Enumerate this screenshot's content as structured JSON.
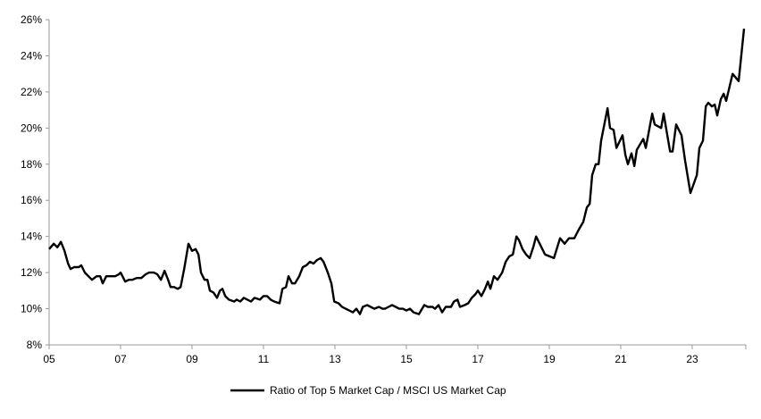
{
  "chart_data": {
    "type": "line",
    "title": "",
    "xlabel": "",
    "ylabel": "",
    "xlim": [
      2005,
      2024.5
    ],
    "ylim": [
      8,
      26
    ],
    "grid": false,
    "legend_position": "bottom",
    "x_ticks": [
      2005,
      2007,
      2009,
      2011,
      2013,
      2015,
      2017,
      2019,
      2021,
      2023
    ],
    "x_tick_labels": [
      "05",
      "07",
      "09",
      "11",
      "13",
      "15",
      "17",
      "19",
      "21",
      "23"
    ],
    "y_ticks": [
      8,
      10,
      12,
      14,
      16,
      18,
      20,
      22,
      24,
      26
    ],
    "y_tick_labels": [
      "8%",
      "10%",
      "12%",
      "14%",
      "16%",
      "18%",
      "20%",
      "22%",
      "24%",
      "26%"
    ],
    "series": [
      {
        "name": "Ratio of Top 5 Market Cap / MSCI US Market Cap",
        "color": "#000000",
        "points": [
          [
            2005.0,
            13.3
          ],
          [
            2005.13,
            13.6
          ],
          [
            2005.23,
            13.4
          ],
          [
            2005.33,
            13.7
          ],
          [
            2005.43,
            13.2
          ],
          [
            2005.53,
            12.5
          ],
          [
            2005.6,
            12.2
          ],
          [
            2005.7,
            12.3
          ],
          [
            2005.83,
            12.3
          ],
          [
            2005.9,
            12.4
          ],
          [
            2006.0,
            12.0
          ],
          [
            2006.1,
            11.8
          ],
          [
            2006.2,
            11.6
          ],
          [
            2006.33,
            11.8
          ],
          [
            2006.43,
            11.8
          ],
          [
            2006.5,
            11.4
          ],
          [
            2006.6,
            11.8
          ],
          [
            2006.75,
            11.8
          ],
          [
            2006.85,
            11.8
          ],
          [
            2006.95,
            11.9
          ],
          [
            2007.0,
            12.0
          ],
          [
            2007.13,
            11.5
          ],
          [
            2007.23,
            11.6
          ],
          [
            2007.33,
            11.6
          ],
          [
            2007.45,
            11.7
          ],
          [
            2007.58,
            11.7
          ],
          [
            2007.7,
            11.9
          ],
          [
            2007.8,
            12.0
          ],
          [
            2007.93,
            12.0
          ],
          [
            2008.03,
            11.9
          ],
          [
            2008.13,
            11.6
          ],
          [
            2008.23,
            12.1
          ],
          [
            2008.33,
            11.6
          ],
          [
            2008.4,
            11.2
          ],
          [
            2008.5,
            11.2
          ],
          [
            2008.6,
            11.1
          ],
          [
            2008.68,
            11.2
          ],
          [
            2008.78,
            12.2
          ],
          [
            2008.9,
            13.6
          ],
          [
            2009.0,
            13.2
          ],
          [
            2009.1,
            13.3
          ],
          [
            2009.18,
            13.0
          ],
          [
            2009.25,
            12.0
          ],
          [
            2009.35,
            11.6
          ],
          [
            2009.43,
            11.6
          ],
          [
            2009.5,
            11.0
          ],
          [
            2009.6,
            10.9
          ],
          [
            2009.7,
            10.6
          ],
          [
            2009.78,
            11.0
          ],
          [
            2009.85,
            11.1
          ],
          [
            2009.93,
            10.7
          ],
          [
            2010.03,
            10.5
          ],
          [
            2010.18,
            10.4
          ],
          [
            2010.25,
            10.5
          ],
          [
            2010.35,
            10.4
          ],
          [
            2010.45,
            10.6
          ],
          [
            2010.55,
            10.5
          ],
          [
            2010.65,
            10.4
          ],
          [
            2010.75,
            10.6
          ],
          [
            2010.9,
            10.5
          ],
          [
            2011.0,
            10.7
          ],
          [
            2011.1,
            10.7
          ],
          [
            2011.2,
            10.5
          ],
          [
            2011.3,
            10.4
          ],
          [
            2011.45,
            10.3
          ],
          [
            2011.53,
            11.1
          ],
          [
            2011.63,
            11.2
          ],
          [
            2011.7,
            11.8
          ],
          [
            2011.8,
            11.4
          ],
          [
            2011.88,
            11.4
          ],
          [
            2012.0,
            11.8
          ],
          [
            2012.1,
            12.3
          ],
          [
            2012.2,
            12.4
          ],
          [
            2012.3,
            12.6
          ],
          [
            2012.4,
            12.5
          ],
          [
            2012.5,
            12.7
          ],
          [
            2012.6,
            12.8
          ],
          [
            2012.68,
            12.6
          ],
          [
            2012.8,
            12.0
          ],
          [
            2012.9,
            11.4
          ],
          [
            2012.98,
            10.4
          ],
          [
            2013.1,
            10.3
          ],
          [
            2013.2,
            10.1
          ],
          [
            2013.3,
            10.0
          ],
          [
            2013.4,
            9.9
          ],
          [
            2013.5,
            9.8
          ],
          [
            2013.6,
            10.0
          ],
          [
            2013.7,
            9.7
          ],
          [
            2013.78,
            10.1
          ],
          [
            2013.9,
            10.2
          ],
          [
            2014.0,
            10.1
          ],
          [
            2014.1,
            10.0
          ],
          [
            2014.23,
            10.1
          ],
          [
            2014.33,
            10.0
          ],
          [
            2014.4,
            10.0
          ],
          [
            2014.5,
            10.1
          ],
          [
            2014.6,
            10.2
          ],
          [
            2014.7,
            10.1
          ],
          [
            2014.8,
            10.0
          ],
          [
            2014.9,
            10.0
          ],
          [
            2015.0,
            9.9
          ],
          [
            2015.1,
            10.0
          ],
          [
            2015.2,
            9.8
          ],
          [
            2015.35,
            9.7
          ],
          [
            2015.5,
            10.2
          ],
          [
            2015.6,
            10.1
          ],
          [
            2015.73,
            10.1
          ],
          [
            2015.8,
            10.0
          ],
          [
            2015.9,
            10.2
          ],
          [
            2016.0,
            9.8
          ],
          [
            2016.1,
            10.1
          ],
          [
            2016.25,
            10.1
          ],
          [
            2016.33,
            10.4
          ],
          [
            2016.43,
            10.5
          ],
          [
            2016.5,
            10.1
          ],
          [
            2016.63,
            10.2
          ],
          [
            2016.73,
            10.3
          ],
          [
            2016.83,
            10.6
          ],
          [
            2016.93,
            10.8
          ],
          [
            2017.0,
            11.0
          ],
          [
            2017.1,
            10.7
          ],
          [
            2017.2,
            11.1
          ],
          [
            2017.28,
            11.5
          ],
          [
            2017.35,
            11.1
          ],
          [
            2017.45,
            11.8
          ],
          [
            2017.55,
            11.6
          ],
          [
            2017.68,
            12.0
          ],
          [
            2017.78,
            12.6
          ],
          [
            2017.88,
            12.9
          ],
          [
            2017.98,
            13.0
          ],
          [
            2018.08,
            14.0
          ],
          [
            2018.15,
            13.8
          ],
          [
            2018.25,
            13.3
          ],
          [
            2018.35,
            13.0
          ],
          [
            2018.45,
            12.8
          ],
          [
            2018.55,
            13.4
          ],
          [
            2018.63,
            14.0
          ],
          [
            2018.88,
            13.0
          ],
          [
            2019.13,
            12.8
          ],
          [
            2019.3,
            13.9
          ],
          [
            2019.43,
            13.6
          ],
          [
            2019.55,
            13.9
          ],
          [
            2019.7,
            13.9
          ],
          [
            2019.83,
            14.4
          ],
          [
            2019.95,
            14.8
          ],
          [
            2020.05,
            15.6
          ],
          [
            2020.13,
            15.8
          ],
          [
            2020.2,
            17.4
          ],
          [
            2020.3,
            18.0
          ],
          [
            2020.38,
            18.0
          ],
          [
            2020.45,
            19.3
          ],
          [
            2020.63,
            21.1
          ],
          [
            2020.7,
            20.0
          ],
          [
            2020.8,
            19.9
          ],
          [
            2020.88,
            18.9
          ],
          [
            2021.05,
            19.6
          ],
          [
            2021.13,
            18.5
          ],
          [
            2021.2,
            18.0
          ],
          [
            2021.3,
            18.6
          ],
          [
            2021.38,
            17.9
          ],
          [
            2021.45,
            18.8
          ],
          [
            2021.63,
            19.4
          ],
          [
            2021.7,
            18.9
          ],
          [
            2021.88,
            20.8
          ],
          [
            2021.95,
            20.2
          ],
          [
            2022.13,
            20.0
          ],
          [
            2022.2,
            20.8
          ],
          [
            2022.38,
            18.7
          ],
          [
            2022.45,
            18.7
          ],
          [
            2022.55,
            20.2
          ],
          [
            2022.7,
            19.6
          ],
          [
            2022.8,
            18.2
          ],
          [
            2022.95,
            16.4
          ],
          [
            2023.13,
            17.4
          ],
          [
            2023.2,
            18.9
          ],
          [
            2023.3,
            19.3
          ],
          [
            2023.38,
            21.2
          ],
          [
            2023.45,
            21.4
          ],
          [
            2023.55,
            21.2
          ],
          [
            2023.63,
            21.3
          ],
          [
            2023.7,
            20.7
          ],
          [
            2023.8,
            21.6
          ],
          [
            2023.88,
            21.9
          ],
          [
            2023.95,
            21.5
          ],
          [
            2024.13,
            23.0
          ],
          [
            2024.3,
            22.6
          ],
          [
            2024.45,
            25.5
          ]
        ]
      }
    ]
  }
}
